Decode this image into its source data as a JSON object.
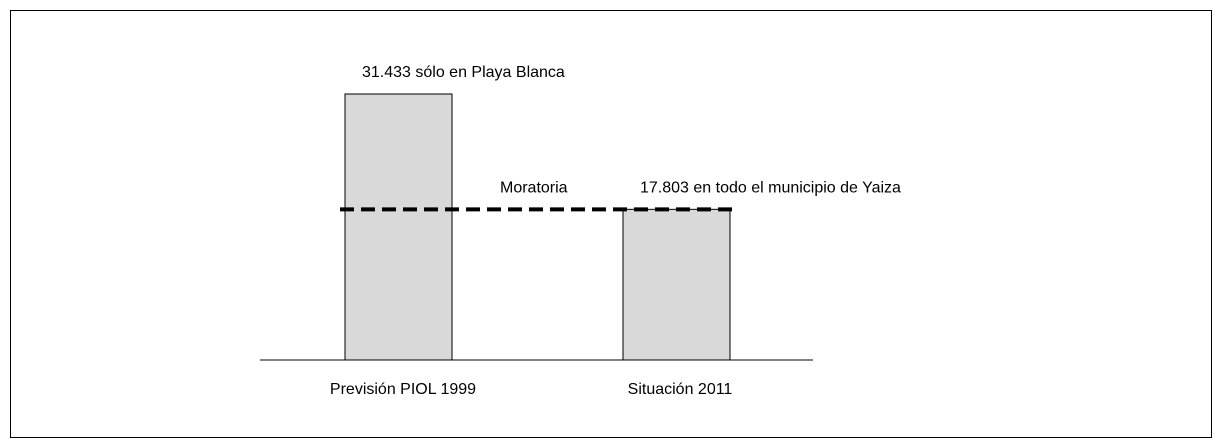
{
  "chart_data": {
    "type": "bar",
    "categories": [
      "Previsión PIOL 1999",
      "Situación 2011"
    ],
    "values": [
      31433,
      17803
    ],
    "value_labels": [
      "31.433 sólo en Playa Blanca",
      "17.803 en todo el municipio de Yaiza"
    ],
    "annotation": "Moratoria",
    "color": "#d9d9d9",
    "ylim": [
      0,
      40000
    ]
  }
}
